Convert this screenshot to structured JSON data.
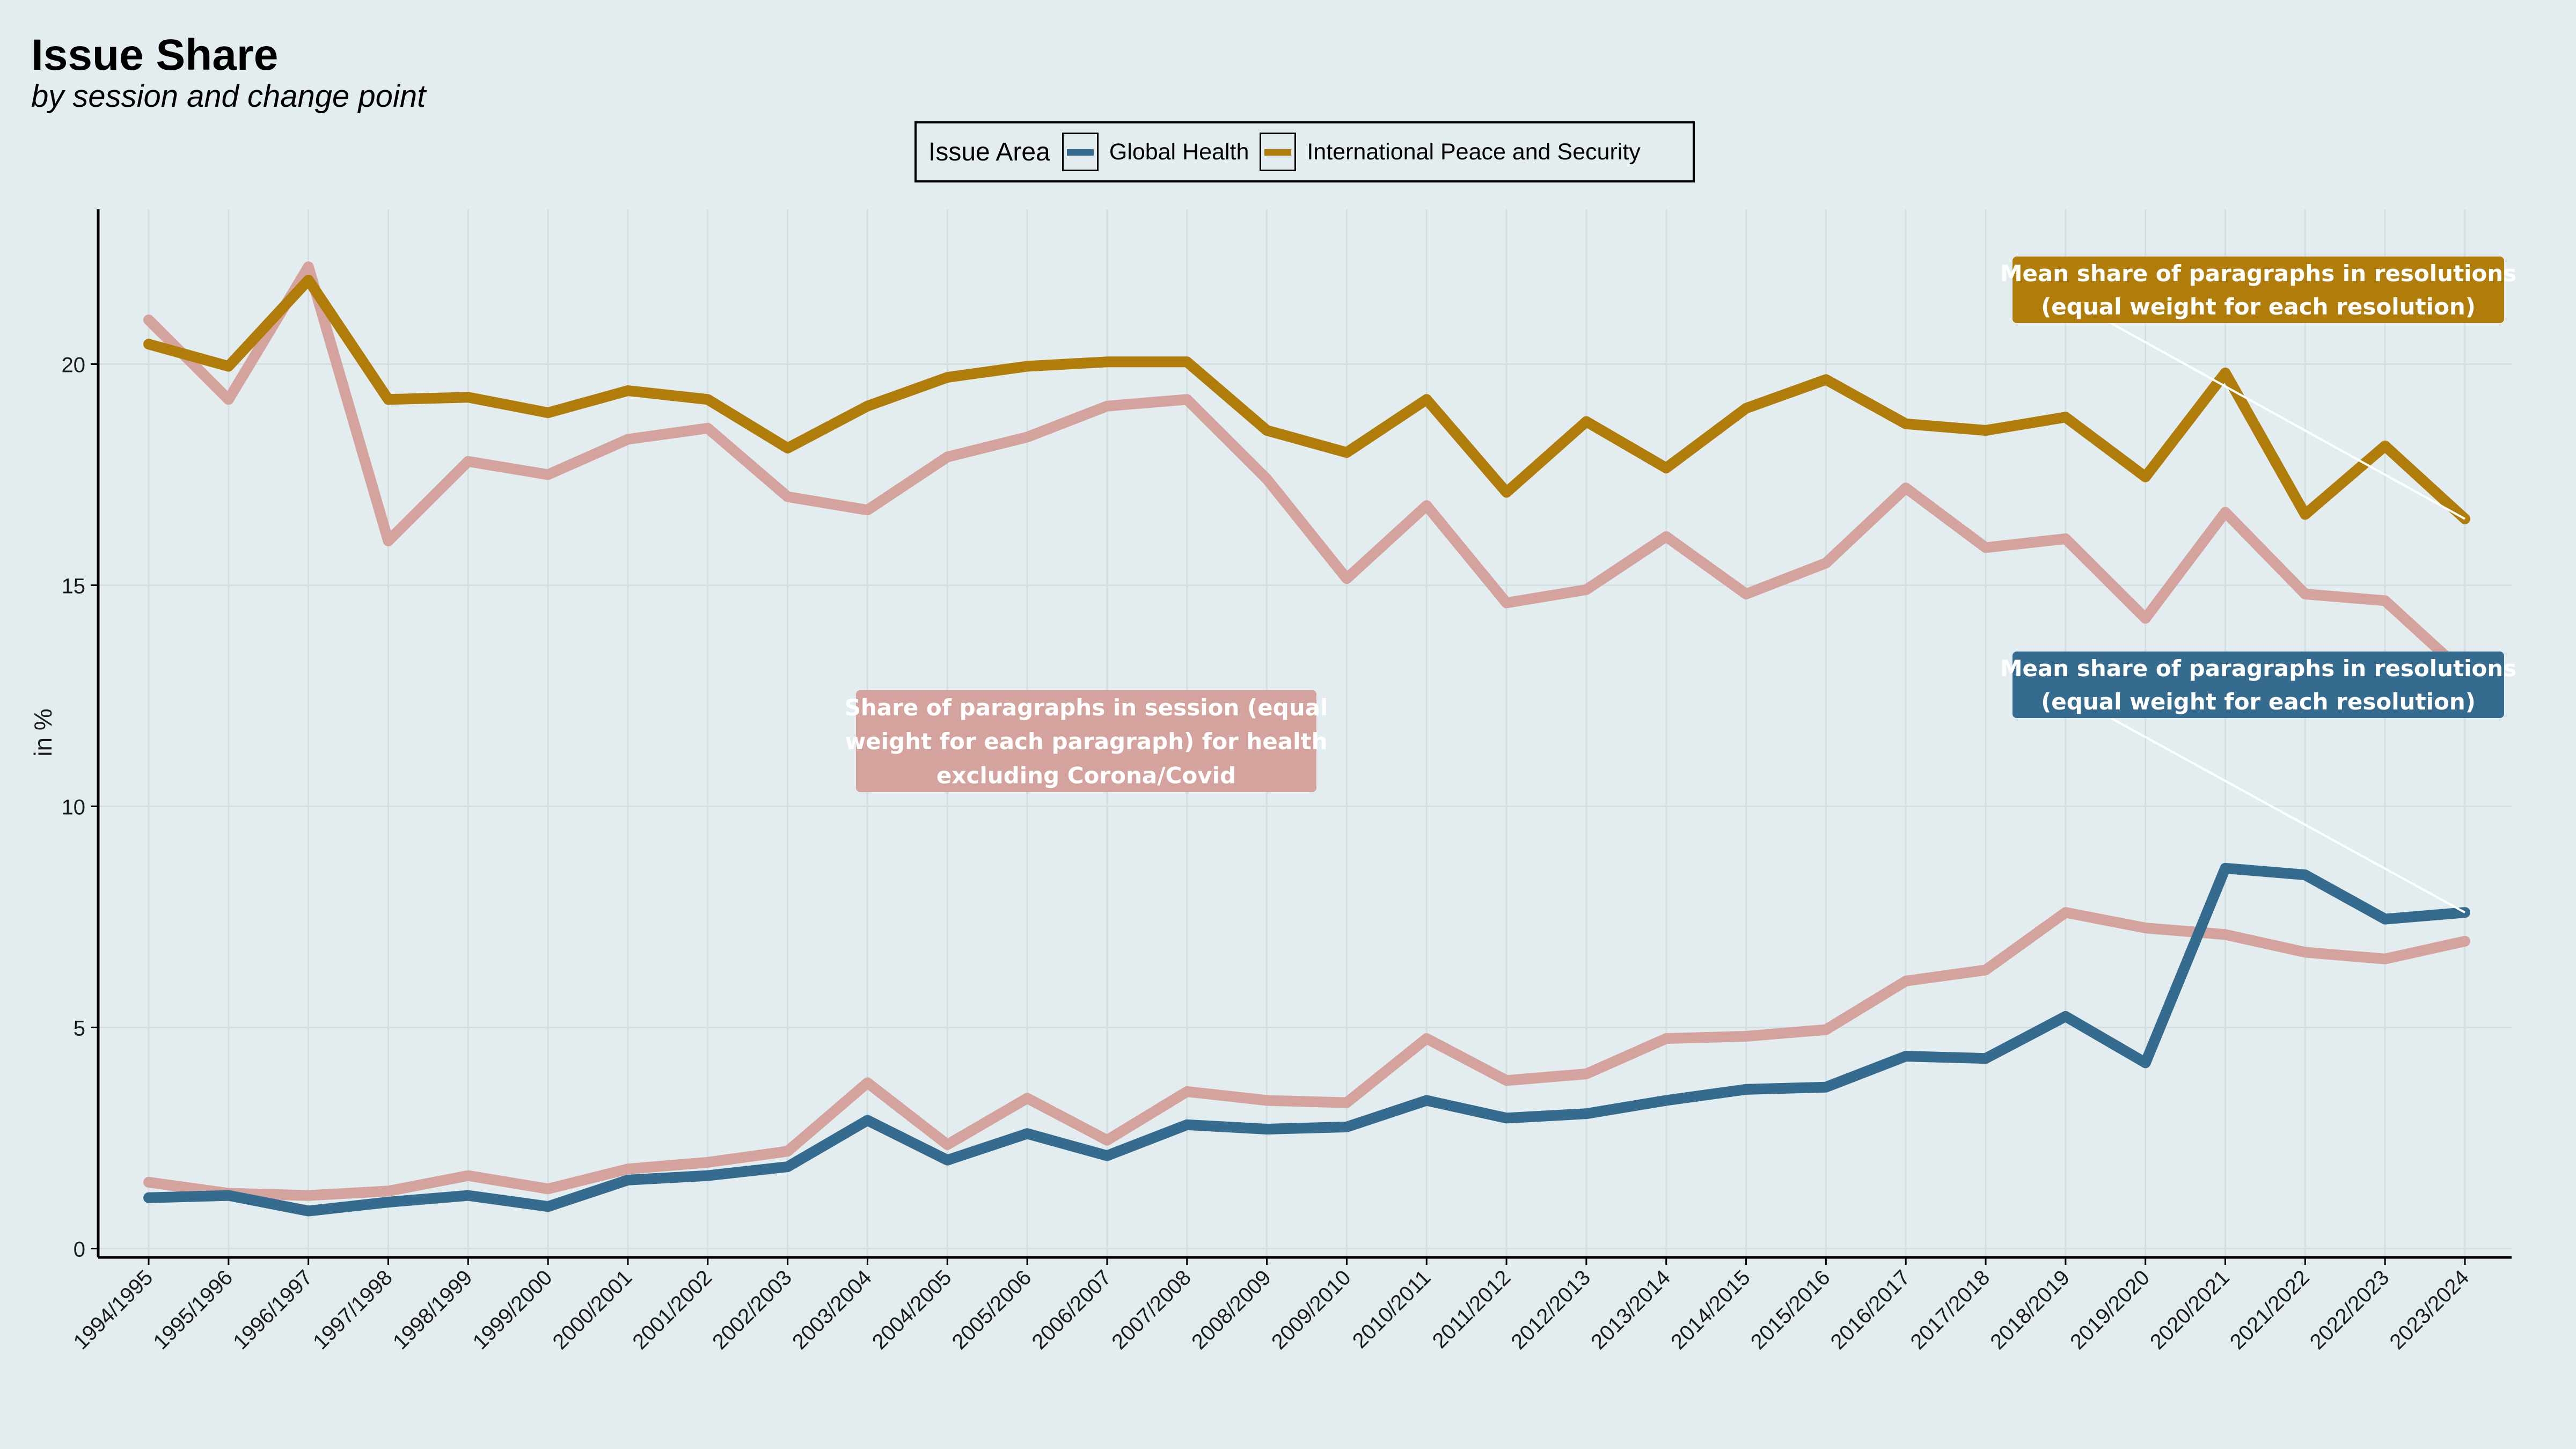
{
  "title": "Issue Share",
  "subtitle": "by session and change point",
  "legend": {
    "title": "Issue Area",
    "items": [
      {
        "label": "Global Health",
        "color": "#346b8e"
      },
      {
        "label": "International Peace and Security",
        "color": "#b07d0a"
      }
    ]
  },
  "chart_data": {
    "type": "line",
    "title": "Issue Share",
    "subtitle": "by session and change point",
    "xlabel": "",
    "ylabel": "in %",
    "ylim": [
      -0.2,
      23.5
    ],
    "yticks": [
      0,
      5,
      10,
      15,
      20
    ],
    "grid": true,
    "legend_position": "top",
    "categories": [
      "1994/1995",
      "1995/1996",
      "1996/1997",
      "1997/1998",
      "1998/1999",
      "1999/2000",
      "2000/2001",
      "2001/2002",
      "2002/2003",
      "2003/2004",
      "2004/2005",
      "2005/2006",
      "2006/2007",
      "2007/2008",
      "2008/2009",
      "2009/2010",
      "2010/2011",
      "2011/2012",
      "2012/2013",
      "2013/2014",
      "2014/2015",
      "2015/2016",
      "2016/2017",
      "2017/2018",
      "2018/2019",
      "2019/2020",
      "2020/2021",
      "2021/2022",
      "2022/2023",
      "2023/2024"
    ],
    "series": [
      {
        "color": "#d4a39e",
        "values": [
          21.0,
          19.2,
          22.2,
          16.0,
          17.8,
          17.5,
          18.3,
          18.55,
          17.0,
          16.7,
          17.9,
          18.35,
          19.05,
          19.2,
          17.4,
          15.15,
          16.8,
          14.6,
          14.9,
          16.1,
          14.8,
          15.5,
          17.2,
          15.85,
          16.05,
          14.25,
          16.65,
          14.8,
          14.65,
          13.0
        ]
      },
      {
        "color": "#d4a39e",
        "values": [
          1.5,
          1.25,
          1.2,
          1.3,
          1.65,
          1.35,
          1.8,
          1.95,
          2.2,
          3.75,
          2.35,
          3.4,
          2.45,
          3.55,
          3.35,
          3.3,
          4.75,
          3.8,
          3.95,
          4.75,
          4.8,
          4.95,
          6.05,
          6.3,
          7.6,
          7.25,
          7.1,
          6.7,
          6.55,
          6.95
        ]
      },
      {
        "name": "International Peace and Security",
        "color": "#b07d0a",
        "values": [
          20.45,
          19.95,
          21.9,
          19.2,
          19.25,
          18.9,
          19.4,
          19.2,
          18.1,
          19.05,
          19.7,
          19.95,
          20.05,
          20.05,
          18.5,
          18.0,
          19.2,
          17.1,
          18.7,
          17.65,
          19.0,
          19.65,
          18.65,
          18.5,
          18.8,
          17.45,
          19.8,
          16.6,
          18.15,
          16.5
        ]
      },
      {
        "name": "Global Health",
        "color": "#346b8e",
        "values": [
          1.15,
          1.2,
          0.85,
          1.05,
          1.2,
          0.95,
          1.55,
          1.65,
          1.85,
          2.9,
          2.0,
          2.6,
          2.1,
          2.8,
          2.7,
          2.75,
          3.35,
          2.95,
          3.05,
          3.35,
          3.6,
          3.65,
          4.35,
          4.3,
          5.25,
          4.2,
          8.6,
          8.45,
          7.45,
          7.6
        ]
      }
    ],
    "annotations": [
      {
        "text": [
          "Mean share of paragraphs in resolutions",
          "(equal weight for each resolution)"
        ],
        "color": "#b07d0a",
        "points_to": {
          "category": "2023/2024",
          "value": 16.5
        }
      },
      {
        "text": [
          "Mean share of paragraphs in resolutions",
          "(equal weight for each resolution)"
        ],
        "color": "#346b8e",
        "points_to": {
          "category": "2023/2024",
          "value": 7.6
        }
      },
      {
        "text": [
          "Share of paragraphs in session (equal",
          "weight for each paragraph) for health",
          "excluding Corona/Covid"
        ],
        "color": "#d4a39e"
      }
    ]
  }
}
